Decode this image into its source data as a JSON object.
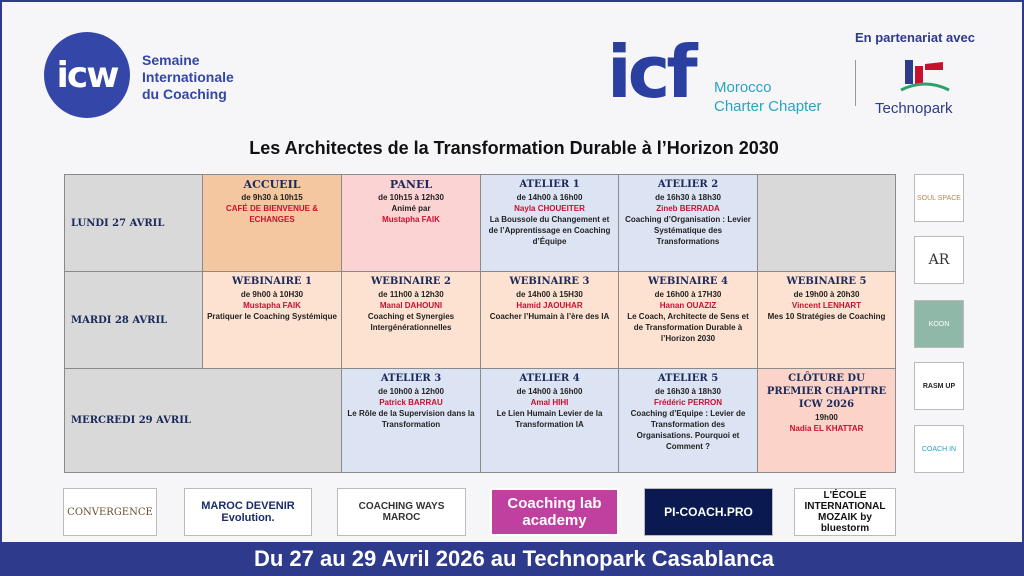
{
  "header": {
    "icw_logo": "icw",
    "icw_name": [
      "Semaine",
      "Internationale",
      "du Coaching"
    ],
    "icf_logo": "icf",
    "icf_chapter": [
      "Morocco",
      "Charter Chapter"
    ],
    "partner_label": "En partenariat avec",
    "partner": "Technopark"
  },
  "title": "Les Architectes de la Transformation Durable à l’Horizon 2030",
  "table": {
    "rows": [
      {
        "day": "LUNDI 27 AVRIL",
        "cells": [
          {
            "title": "ACCUEIL",
            "time": "de 9h30 à 10h15",
            "speaker": "CAFÉ DE BIENVENUE & ECHANGES"
          },
          {
            "title": "PANEL",
            "time": "de 10h15 à 12h30",
            "intro": "Animé par",
            "speaker": "Mustapha FAIK"
          },
          {
            "title": "ATELIER 1",
            "time": "de 14h00 à 16h00",
            "speaker": "Nayla CHOUEITER",
            "text": "La Boussole du Changement et de l’Apprentissage en Coaching d’Équipe"
          },
          {
            "title": "ATELIER 2",
            "time": "de 16h30 à 18h30",
            "speaker": "Zineb BERRADA",
            "text": "Coaching d’Organisation : Levier Systématique des Transformations"
          }
        ]
      },
      {
        "day": "MARDI 28 AVRIL",
        "cells": [
          {
            "title": "WEBINAIRE 1",
            "time": "de 9h00 à 10H30",
            "speaker": "Mustapha FAIK",
            "text": "Pratiquer le Coaching Systémique"
          },
          {
            "title": "WEBINAIRE 2",
            "time": "de 11h00 à 12h30",
            "speaker": "Manal DAHOUNI",
            "text": "Coaching et Synergies Intergénérationnelles"
          },
          {
            "title": "WEBINAIRE 3",
            "time": "de 14h00 à 15H30",
            "speaker": "Hamid JAOUHAR",
            "text": "Coacher l’Humain à l’ère des IA"
          },
          {
            "title": "WEBINAIRE 4",
            "time": "de 16h00 à 17H30",
            "speaker": "Hanan OUAZIZ",
            "text": "Le Coach, Architecte de Sens et de Transformation Durable à l’Horizon 2030"
          },
          {
            "title": "WEBINAIRE 5",
            "time": "de 19h00 à 20h30",
            "speaker": "Vincent LENHART",
            "text": "Mes 10 Stratégies de Coaching"
          }
        ]
      },
      {
        "day": "MERCREDI 29 AVRIL",
        "cells": [
          {
            "title": "ATELIER 3",
            "time": "de 10h00 à 12h00",
            "speaker": "Patrick BARRAU",
            "text": "Le Rôle de la Supervision dans la Transformation"
          },
          {
            "title": "ATELIER 4",
            "time": "de 14h00 à 16h00",
            "speaker": "Amal HIHI",
            "text": "Le Lien Humain Levier de la Transformation IA"
          },
          {
            "title": "ATELIER 5",
            "time": "de 16h30 à 18h30",
            "speaker": "Frédéric PERRON",
            "text": "Coaching d’Equipe : Levier de Transformation des Organisations. Pourquoi et Comment ?"
          },
          {
            "title": "CLÔTURE DU PREMIER CHAPITRE ICW 2026",
            "time": "19h00",
            "speaker": "Nadia EL KHATTAR"
          }
        ]
      }
    ]
  },
  "side_sponsors": [
    "SOUL SPACE",
    "AR",
    "KOON",
    "RASM UP",
    "COACH IN"
  ],
  "bottom_sponsors": [
    "CONVERGENCE",
    "MAROC DEVENIR Evolution.",
    "COACHING WAYS MAROC",
    "Coaching lab academy",
    "PI-COACH.PRO",
    "L'ÉCOLE INTERNATIONAL MOZAIK by bluestorm"
  ],
  "footer": "Du 27 au 29 Avril 2026 au Technopark Casablanca"
}
